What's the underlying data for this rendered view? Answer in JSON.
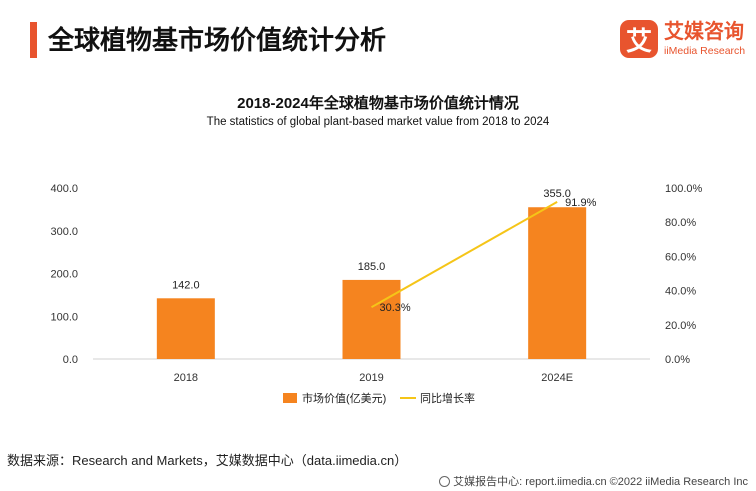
{
  "header": {
    "title": "全球植物基市场价值统计分析"
  },
  "logo": {
    "mark": "艾",
    "name_cn": "艾媒咨询",
    "name_en": "iiMedia Research",
    "color": "#e8542e"
  },
  "chart_data": {
    "type": "bar",
    "title": "2018-2024年全球植物基市场价值统计情况",
    "subtitle": "The statistics of global plant-based market value from 2018 to 2024",
    "categories": [
      "2018",
      "2019",
      "2024E"
    ],
    "series": [
      {
        "name": "市场价值(亿美元)",
        "type": "bar",
        "axis": "left",
        "color": "#f5841f",
        "values": [
          142.0,
          185.0,
          355.0
        ],
        "labels": [
          "142.0",
          "185.0",
          "355.0"
        ]
      },
      {
        "name": "同比增长率",
        "type": "line",
        "axis": "right",
        "color": "#f5c518",
        "values": [
          null,
          30.3,
          91.9
        ],
        "labels": [
          "",
          "30.3%",
          "91.9%"
        ]
      }
    ],
    "y_left": {
      "min": 0,
      "max": 400,
      "ticks": [
        0,
        100,
        200,
        300,
        400
      ],
      "tick_labels": [
        "0.0",
        "100.0",
        "200.0",
        "300.0",
        "400.0"
      ]
    },
    "y_right": {
      "min": 0,
      "max": 100,
      "ticks": [
        0,
        20,
        40,
        60,
        80,
        100
      ],
      "tick_labels": [
        "0.0%",
        "20.0%",
        "40.0%",
        "60.0%",
        "80.0%",
        "100.0%"
      ]
    },
    "grid": false,
    "legend": "bottom"
  },
  "source": "数据来源：Research and Markets，艾媒数据中心（data.iimedia.cn）",
  "footer": "艾媒报告中心: report.iimedia.cn  ©2022  iiMedia Research  Inc"
}
